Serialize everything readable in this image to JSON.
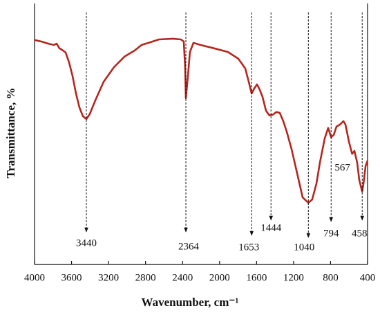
{
  "chart_data": {
    "type": "line",
    "xlabel": "Wavenumber, cm⁻¹",
    "ylabel": "Transmittance, %",
    "color": "#b5261e",
    "xlim": [
      4000,
      400
    ],
    "ylim": [
      0,
      100
    ],
    "xticks": [
      4000,
      3600,
      3200,
      2800,
      2400,
      2000,
      1600,
      1200,
      800,
      400
    ],
    "x": [
      4000,
      3925,
      3851,
      3791,
      3761,
      3731,
      3701,
      3664,
      3627,
      3589,
      3552,
      3515,
      3477,
      3440,
      3403,
      3343,
      3253,
      3141,
      3029,
      2917,
      2842,
      2768,
      2656,
      2506,
      2417,
      2387,
      2372,
      2364,
      2342,
      2320,
      2282,
      2208,
      2058,
      1909,
      1797,
      1722,
      1685,
      1653,
      1625,
      1595,
      1565,
      1535,
      1498,
      1461,
      1423,
      1386,
      1349,
      1311,
      1274,
      1222,
      1162,
      1102,
      1040,
      998,
      953,
      915,
      863,
      826,
      794,
      766,
      736,
      699,
      661,
      639,
      601,
      567,
      542,
      512,
      490,
      458,
      444,
      422,
      400
    ],
    "values": [
      86,
      85.4,
      84.6,
      84.1,
      84.6,
      82.8,
      82.2,
      81.2,
      77.5,
      72.2,
      65.5,
      60.2,
      56.8,
      55.7,
      57.6,
      62.9,
      70,
      75.6,
      79.6,
      82,
      84.1,
      84.9,
      86.2,
      86.5,
      86.2,
      85.4,
      75.1,
      63.7,
      72.2,
      81.4,
      84.9,
      84.1,
      82.8,
      81.4,
      78.8,
      75.1,
      70,
      65.5,
      67.4,
      69,
      66.9,
      64.2,
      58.9,
      57.1,
      57.4,
      58.4,
      58.1,
      54.9,
      50.9,
      44.3,
      35,
      25.7,
      23.6,
      24.9,
      31,
      39,
      48.3,
      52.3,
      48.8,
      49.6,
      52.8,
      53.6,
      54.9,
      53.6,
      47,
      42.4,
      43.5,
      39,
      32.4,
      27.9,
      31,
      37.7,
      39.8
    ],
    "annotations": [
      {
        "text": "3440",
        "x": 3440
      },
      {
        "text": "2364",
        "x": 2364
      },
      {
        "text": "1653",
        "x": 1653
      },
      {
        "text": "1444",
        "x": 1444
      },
      {
        "text": "1040",
        "x": 1040
      },
      {
        "text": "794",
        "x": 794
      },
      {
        "text": "458",
        "x": 458
      },
      {
        "text": "567",
        "x": 567
      }
    ]
  }
}
